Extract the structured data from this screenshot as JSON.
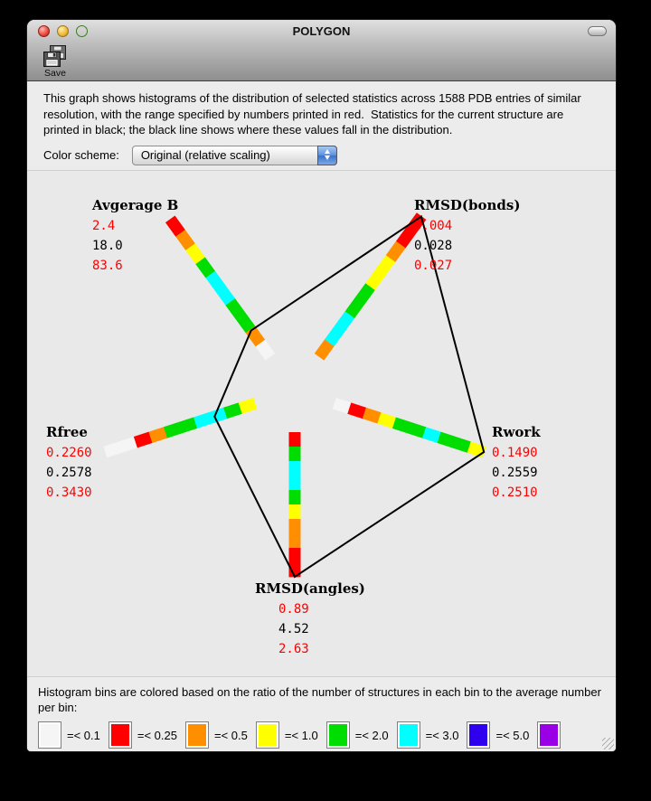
{
  "window": {
    "title": "POLYGON",
    "toolbar": {
      "save_label": "Save"
    }
  },
  "description": "This graph shows histograms of the distribution of selected statistics across 1588 PDB entries of similar resolution, with the range specified by numbers printed in red.  Statistics for the current structure are printed in black; the black line shows where these values fall in the distribution.",
  "color_scheme": {
    "label": "Color scheme:",
    "selected": "Original (relative scaling)"
  },
  "chart_data": {
    "type": "radar-histogram",
    "title": "POLYGON",
    "entries_count": "1588",
    "palette": {
      "white": "#f5f5f5",
      "red": "#ff0000",
      "orange": "#ff8f00",
      "yellow": "#ffff00",
      "green": "#00dd00",
      "cyan": "#00ffff",
      "blue": "#2f00ee",
      "purple": "#9900e6"
    },
    "polygon_line_color": "#000000",
    "axes": [
      {
        "name": "Avgerage B",
        "range_min": "2.4",
        "current": "18.0",
        "range_max": "83.6",
        "min": 2.4,
        "value": 18.0,
        "max": 83.6,
        "bins": [
          "white",
          "orange",
          "green",
          "green",
          "cyan",
          "cyan",
          "green",
          "yellow",
          "orange",
          "red"
        ]
      },
      {
        "name": "RMSD(bonds)",
        "range_min": "0.004",
        "current": "0.028",
        "range_max": "0.027",
        "min": 0.004,
        "value": 0.028,
        "max": 0.027,
        "bins": [
          "orange",
          "cyan",
          "cyan",
          "green",
          "green",
          "yellow",
          "yellow",
          "orange",
          "red",
          "red"
        ]
      },
      {
        "name": "Rwork",
        "range_min": "0.1490",
        "current": "0.2559",
        "range_max": "0.2510",
        "min": 0.149,
        "value": 0.2559,
        "max": 0.251,
        "bins": [
          "white",
          "red",
          "orange",
          "yellow",
          "green",
          "green",
          "cyan",
          "green",
          "green",
          "yellow"
        ]
      },
      {
        "name": "RMSD(angles)",
        "range_min": "0.89",
        "current": "4.52",
        "range_max": "2.63",
        "min": 0.89,
        "value": 4.52,
        "max": 2.63,
        "bins": [
          "red",
          "green",
          "cyan",
          "cyan",
          "green",
          "yellow",
          "orange",
          "orange",
          "red",
          "red"
        ]
      },
      {
        "name": "Rfree",
        "range_min": "0.2260",
        "current": "0.2578",
        "range_max": "0.3430",
        "min": 0.226,
        "value": 0.2578,
        "max": 0.343,
        "bins": [
          "yellow",
          "green",
          "cyan",
          "cyan",
          "green",
          "green",
          "orange",
          "red",
          "white",
          "white"
        ]
      }
    ]
  },
  "legend": {
    "text": "Histogram bins are colored based on the ratio of the number of structures in each bin to the average number per bin:",
    "bins": [
      {
        "color": "white",
        "label": "=< 0.1"
      },
      {
        "color": "red",
        "label": "=< 0.25"
      },
      {
        "color": "orange",
        "label": "=< 0.5"
      },
      {
        "color": "yellow",
        "label": "=< 1.0"
      },
      {
        "color": "green",
        "label": "=< 2.0"
      },
      {
        "color": "cyan",
        "label": "=< 3.0"
      },
      {
        "color": "blue",
        "label": "=< 5.0"
      },
      {
        "color": "purple",
        "label": ""
      }
    ]
  }
}
